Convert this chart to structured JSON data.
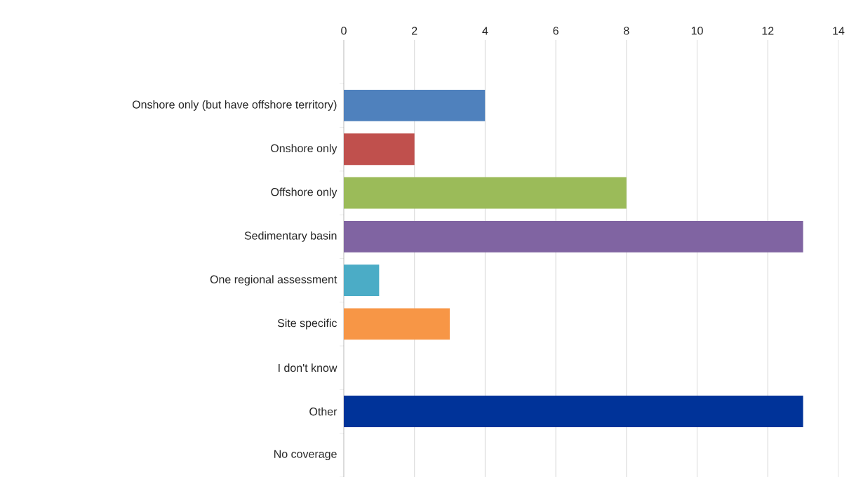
{
  "chart_data": {
    "type": "bar",
    "orientation": "horizontal",
    "categories": [
      null,
      "Onshore only (but have offshore territory)",
      "Onshore only",
      "Offshore only",
      "Sedimentary basin",
      "One regional assessment",
      "Site specific",
      "I don't know",
      "Other",
      "No coverage"
    ],
    "values": [
      null,
      4,
      2,
      8,
      13,
      1,
      3,
      0,
      13,
      0
    ],
    "colors": [
      "#4f81bd",
      "#4f81bd",
      "#c0504d",
      "#9bbb59",
      "#8064a2",
      "#4bacc6",
      "#f79646",
      "#4f81bd",
      "#003399",
      "#4f81bd"
    ],
    "xlim": [
      0,
      14
    ],
    "xticks": [
      0,
      2,
      4,
      6,
      8,
      10,
      12,
      14
    ],
    "grid": "x"
  }
}
